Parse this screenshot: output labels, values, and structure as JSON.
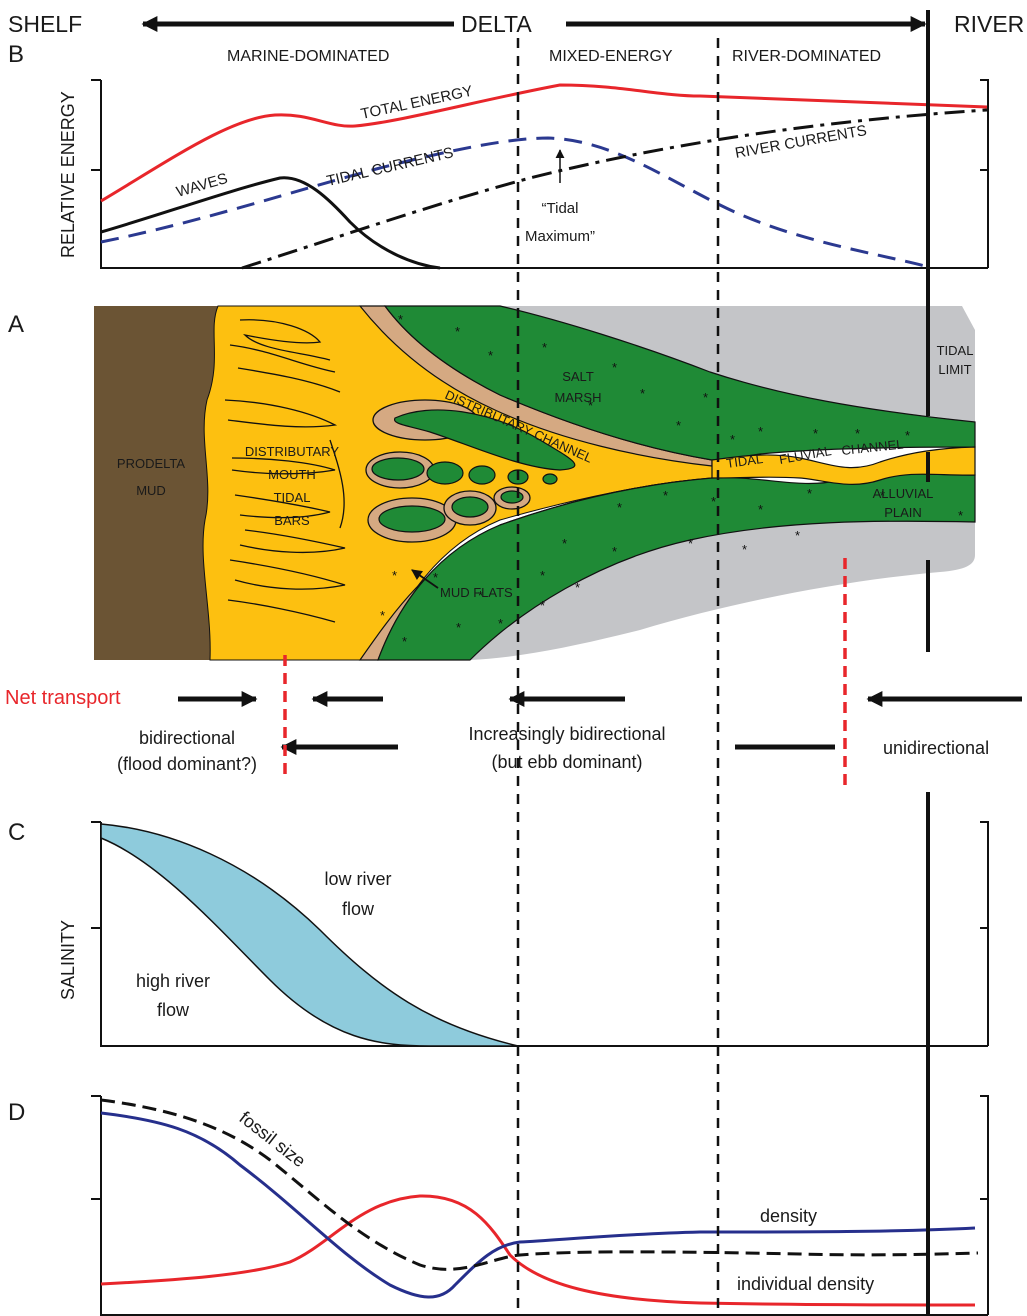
{
  "header": {
    "shelf": "SHELF",
    "delta": "DELTA",
    "river": "RIVER"
  },
  "zones": {
    "marine": "MARINE-DOMINATED",
    "mixed": "MIXED-ENERGY",
    "river": "RIVER-DOMINATED"
  },
  "panels": {
    "a": "A",
    "b": "B",
    "c": "C",
    "d": "D"
  },
  "panel_b": {
    "ylabel": "RELATIVE ENERGY",
    "total_energy": "TOTAL ENERGY",
    "waves": "WAVES",
    "tidal_currents": "TIDAL CURRENTS",
    "river_currents": "RIVER CURRENTS",
    "tidal_max_1": "“Tidal",
    "tidal_max_2": "Maximum”"
  },
  "panel_a": {
    "prodelta_1": "PRODELTA",
    "prodelta_2": "MUD",
    "bars_1": "DISTRIBUTARY",
    "bars_2": "MOUTH",
    "bars_3": "TIDAL",
    "bars_4": "BARS",
    "salt_marsh_1": "SALT",
    "salt_marsh_2": "MARSH",
    "distributary_channel": "DISTRIBUTARY CHANNEL",
    "tidal": "TIDAL",
    "fluvial": "FLUVIAL",
    "channel": "CHANNEL",
    "tidal_limit_1": "TIDAL",
    "tidal_limit_2": "LIMIT",
    "alluvial_1": "ALLUVIAL",
    "alluvial_2": "PLAIN",
    "mud_flats": "MUD FLATS"
  },
  "transport": {
    "net_transport": "Net transport",
    "bidirectional": "bidirectional",
    "flood_dominant": "(flood dominant?)",
    "increasingly": "Increasingly bidirectional",
    "ebb_dominant": "(but ebb dominant)",
    "unidirectional": "unidirectional"
  },
  "panel_c": {
    "ylabel": "SALINITY",
    "low_1": "low river",
    "low_2": "flow",
    "high_1": "high river",
    "high_2": "flow"
  },
  "panel_d": {
    "fossil_size": "fossil size",
    "density": "density",
    "individual_density": "individual density"
  },
  "colors": {
    "red": "#e8262b",
    "blue_dash": "#2b3990",
    "navy": "#262f8c",
    "prodelta": "#6b5434",
    "sand": "#fdc010",
    "mud": "#d5a982",
    "marsh": "#1f8a36",
    "alluvial": "#c4c5c8",
    "salinity": "#8ecbdc"
  }
}
